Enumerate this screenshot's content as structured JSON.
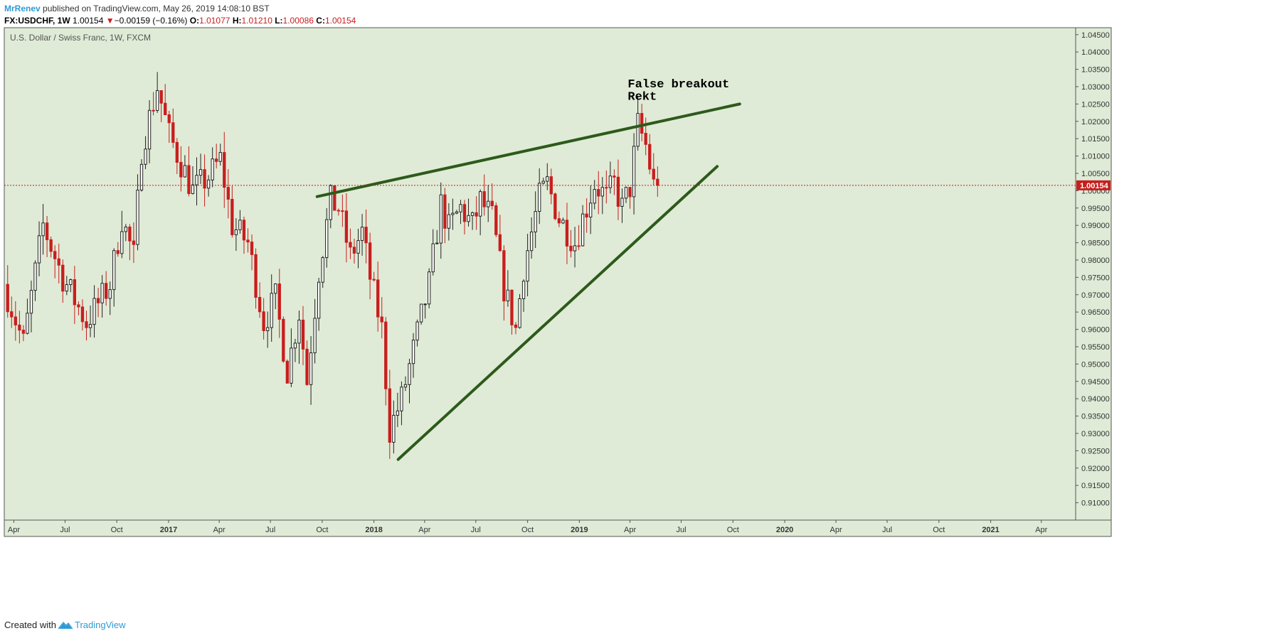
{
  "header": {
    "author": "MrRenev",
    "published_text": " published on TradingView.com, May 26, 2019 14:08:10 BST",
    "symbol": "FX:USDCHF, 1W",
    "last": "1.00154",
    "arrow": "▼",
    "change": "−0.00159 (−0.16%)",
    "o_label": "O:",
    "o_value": "1.01077",
    "h_label": "H:",
    "h_value": "1.01210",
    "l_label": "L:",
    "l_value": "1.00086",
    "c_label": "C:",
    "c_value": "1.00154"
  },
  "footer": {
    "created_with": "Created with",
    "brand": "TradingView"
  },
  "colors": {
    "plot_bg": "#dfebd6",
    "up_fill": "#ffffff",
    "down_fill": "#c81e1e",
    "wick": "#222222",
    "trendline": "#2d5a1b",
    "price_line": "#c81e1e",
    "brand": "#2e9bd6"
  },
  "chart_data": {
    "type": "candlestick",
    "title": "U.S. Dollar / Swiss Franc, 1W, FXCM",
    "interval": "1W",
    "ylim": [
      0.905,
      1.047
    ],
    "y_ticks": [
      "1.04500",
      "1.04000",
      "1.03500",
      "1.03000",
      "1.02500",
      "1.02000",
      "1.01500",
      "1.01000",
      "1.00500",
      "1.00000",
      "0.99500",
      "0.99000",
      "0.98500",
      "0.98000",
      "0.97500",
      "0.97000",
      "0.96500",
      "0.96000",
      "0.95500",
      "0.95000",
      "0.94500",
      "0.94000",
      "0.93500",
      "0.93000",
      "0.92500",
      "0.92000",
      "0.91500",
      "0.91000"
    ],
    "x_ticks": [
      {
        "label": "Apr",
        "date": "2016-04-01",
        "bold": false
      },
      {
        "label": "Jul",
        "date": "2016-07-01",
        "bold": false
      },
      {
        "label": "Oct",
        "date": "2016-10-01",
        "bold": false
      },
      {
        "label": "2017",
        "date": "2017-01-01",
        "bold": true
      },
      {
        "label": "Apr",
        "date": "2017-04-01",
        "bold": false
      },
      {
        "label": "Jul",
        "date": "2017-07-01",
        "bold": false
      },
      {
        "label": "Oct",
        "date": "2017-10-01",
        "bold": false
      },
      {
        "label": "2018",
        "date": "2018-01-01",
        "bold": true
      },
      {
        "label": "Apr",
        "date": "2018-04-01",
        "bold": false
      },
      {
        "label": "Jul",
        "date": "2018-07-01",
        "bold": false
      },
      {
        "label": "Oct",
        "date": "2018-10-01",
        "bold": false
      },
      {
        "label": "2019",
        "date": "2019-01-01",
        "bold": true
      },
      {
        "label": "Apr",
        "date": "2019-04-01",
        "bold": false
      },
      {
        "label": "Jul",
        "date": "2019-07-01",
        "bold": false
      },
      {
        "label": "Oct",
        "date": "2019-10-01",
        "bold": false
      },
      {
        "label": "2020",
        "date": "2020-01-01",
        "bold": true
      },
      {
        "label": "Apr",
        "date": "2020-04-01",
        "bold": false
      },
      {
        "label": "Jul",
        "date": "2020-07-01",
        "bold": false
      },
      {
        "label": "Oct",
        "date": "2020-10-01",
        "bold": false
      },
      {
        "label": "2021",
        "date": "2021-01-01",
        "bold": true
      },
      {
        "label": "Apr",
        "date": "2021-04-01",
        "bold": false
      }
    ],
    "x_range": [
      "2016-03-15",
      "2021-06-01"
    ],
    "last_price": 1.00154,
    "last_price_label": "1.00154",
    "annotations": [
      "False breakout",
      "Rekt"
    ],
    "trendlines": [
      {
        "name": "resistance",
        "from": {
          "date": "2017-09-22",
          "price": 0.9983
        },
        "to": {
          "date": "2019-10-13",
          "price": 1.025
        }
      },
      {
        "name": "support",
        "from": {
          "date": "2018-02-13",
          "price": 0.9225
        },
        "to": {
          "date": "2019-09-03",
          "price": 1.007
        }
      }
    ],
    "anchors": [
      {
        "date": "2016-03-21",
        "price": 0.973
      },
      {
        "date": "2016-04-25",
        "price": 0.956
      },
      {
        "date": "2016-05-30",
        "price": 0.99
      },
      {
        "date": "2016-07-04",
        "price": 0.975
      },
      {
        "date": "2016-08-15",
        "price": 0.962
      },
      {
        "date": "2016-09-26",
        "price": 0.973
      },
      {
        "date": "2016-10-17",
        "price": 0.992
      },
      {
        "date": "2016-11-07",
        "price": 0.981
      },
      {
        "date": "2016-11-21",
        "price": 1.012
      },
      {
        "date": "2016-12-19",
        "price": 1.03
      },
      {
        "date": "2017-01-09",
        "price": 1.016
      },
      {
        "date": "2017-02-20",
        "price": 1.0
      },
      {
        "date": "2017-03-20",
        "price": 1.004
      },
      {
        "date": "2017-04-10",
        "price": 1.009
      },
      {
        "date": "2017-05-01",
        "price": 0.99
      },
      {
        "date": "2017-05-29",
        "price": 0.985
      },
      {
        "date": "2017-06-26",
        "price": 0.962
      },
      {
        "date": "2017-07-17",
        "price": 0.969
      },
      {
        "date": "2017-08-07",
        "price": 0.948
      },
      {
        "date": "2017-08-28",
        "price": 0.965
      },
      {
        "date": "2017-09-11",
        "price": 0.945
      },
      {
        "date": "2017-10-02",
        "price": 0.977
      },
      {
        "date": "2017-10-23",
        "price": 0.997
      },
      {
        "date": "2017-11-06",
        "price": 0.995
      },
      {
        "date": "2017-11-27",
        "price": 0.981
      },
      {
        "date": "2017-12-18",
        "price": 0.988
      },
      {
        "date": "2018-01-01",
        "price": 0.975
      },
      {
        "date": "2018-01-22",
        "price": 0.96
      },
      {
        "date": "2018-02-05",
        "price": 0.931
      },
      {
        "date": "2018-02-26",
        "price": 0.94
      },
      {
        "date": "2018-03-19",
        "price": 0.954
      },
      {
        "date": "2018-04-16",
        "price": 0.973
      },
      {
        "date": "2018-05-07",
        "price": 0.996
      },
      {
        "date": "2018-05-21",
        "price": 0.989
      },
      {
        "date": "2018-06-11",
        "price": 0.995
      },
      {
        "date": "2018-07-02",
        "price": 0.99
      },
      {
        "date": "2018-07-16",
        "price": 0.997
      },
      {
        "date": "2018-08-06",
        "price": 0.992
      },
      {
        "date": "2018-08-27",
        "price": 0.972
      },
      {
        "date": "2018-09-17",
        "price": 0.96
      },
      {
        "date": "2018-10-01",
        "price": 0.978
      },
      {
        "date": "2018-10-29",
        "price": 0.998
      },
      {
        "date": "2018-11-12",
        "price": 1.002
      },
      {
        "date": "2018-12-03",
        "price": 0.992
      },
      {
        "date": "2018-12-31",
        "price": 0.985
      },
      {
        "date": "2019-01-14",
        "price": 0.992
      },
      {
        "date": "2019-02-04",
        "price": 1.002
      },
      {
        "date": "2019-02-25",
        "price": 0.998
      },
      {
        "date": "2019-03-11",
        "price": 1.002
      },
      {
        "date": "2019-03-25",
        "price": 0.995
      },
      {
        "date": "2019-04-08",
        "price": 1.001
      },
      {
        "date": "2019-04-22",
        "price": 1.019
      },
      {
        "date": "2019-05-06",
        "price": 1.013
      },
      {
        "date": "2019-05-20",
        "price": 1.0015
      }
    ]
  }
}
